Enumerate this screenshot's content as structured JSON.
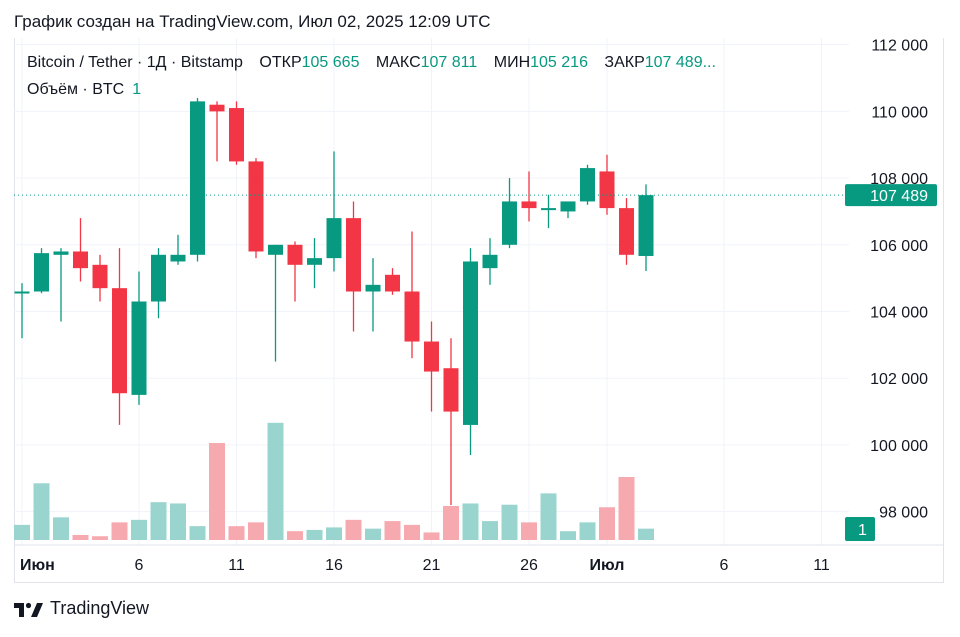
{
  "caption": "График создан на TradingView.com, Июл 02, 2025 12:09 UTC",
  "legend": {
    "symbol": "Bitcoin / Tether · 1Д · Bitstamp",
    "open_label": "ОТКР",
    "open_value": "105 665",
    "high_label": "МАКС",
    "high_value": "107 811",
    "low_label": "МИН",
    "low_value": "105 216",
    "close_label": "ЗАКР",
    "close_value": "107 489...",
    "volume_label": "Объём · BTC",
    "volume_value": "1"
  },
  "footer": {
    "brand": "TradingView"
  },
  "colors": {
    "up": "#089981",
    "down": "#f23645",
    "up_volume": "#99d4ce",
    "down_volume": "#f7a9b0",
    "grid": "#f0f3fa"
  },
  "chart_data": {
    "type": "candlestick",
    "ylim": [
      97000,
      112200
    ],
    "y_ticks": [
      "112 000",
      "110 000",
      "108 000",
      "106 000",
      "104 000",
      "102 000",
      "100 000",
      "98 000"
    ],
    "y_tick_values": [
      112000,
      110000,
      108000,
      106000,
      104000,
      102000,
      100000,
      98000
    ],
    "x_ticks": [
      "Июн",
      "6",
      "11",
      "16",
      "21",
      "26",
      "Июл",
      "6",
      "11"
    ],
    "x_tick_days": [
      0,
      6,
      11,
      16,
      21,
      26,
      30,
      36,
      41
    ],
    "last_price_label": "107 489",
    "last_price": 107489,
    "volume_badge": "1",
    "candles": [
      {
        "day": 0,
        "o": 104550,
        "h": 104850,
        "l": 103200,
        "c": 104600
      },
      {
        "day": 1,
        "o": 104600,
        "h": 105900,
        "l": 104550,
        "c": 105750
      },
      {
        "day": 2,
        "o": 105700,
        "h": 105900,
        "l": 103700,
        "c": 105800
      },
      {
        "day": 3,
        "o": 105800,
        "h": 106800,
        "l": 104900,
        "c": 105300
      },
      {
        "day": 4,
        "o": 105400,
        "h": 105700,
        "l": 104300,
        "c": 104700
      },
      {
        "day": 5,
        "o": 104700,
        "h": 105900,
        "l": 100600,
        "c": 101550
      },
      {
        "day": 6,
        "o": 101500,
        "h": 105200,
        "l": 101200,
        "c": 104300
      },
      {
        "day": 7,
        "o": 104300,
        "h": 105900,
        "l": 103800,
        "c": 105700
      },
      {
        "day": 8,
        "o": 105500,
        "h": 106300,
        "l": 105400,
        "c": 105700
      },
      {
        "day": 9,
        "o": 105700,
        "h": 110400,
        "l": 105500,
        "c": 110300
      },
      {
        "day": 10,
        "o": 110200,
        "h": 110300,
        "l": 108500,
        "c": 110000
      },
      {
        "day": 11,
        "o": 110100,
        "h": 110300,
        "l": 108400,
        "c": 108500
      },
      {
        "day": 12,
        "o": 108500,
        "h": 108600,
        "l": 105600,
        "c": 105800
      },
      {
        "day": 13,
        "o": 105700,
        "h": 106000,
        "l": 102500,
        "c": 106000
      },
      {
        "day": 14,
        "o": 106000,
        "h": 106100,
        "l": 104300,
        "c": 105400
      },
      {
        "day": 15,
        "o": 105400,
        "h": 106200,
        "l": 104700,
        "c": 105600
      },
      {
        "day": 16,
        "o": 105600,
        "h": 108800,
        "l": 105200,
        "c": 106800
      },
      {
        "day": 17,
        "o": 106800,
        "h": 107300,
        "l": 103400,
        "c": 104600
      },
      {
        "day": 18,
        "o": 104600,
        "h": 105600,
        "l": 103400,
        "c": 104800
      },
      {
        "day": 19,
        "o": 105100,
        "h": 105300,
        "l": 104500,
        "c": 104600
      },
      {
        "day": 20,
        "o": 104600,
        "h": 106400,
        "l": 102600,
        "c": 103100
      },
      {
        "day": 21,
        "o": 103100,
        "h": 103700,
        "l": 101000,
        "c": 102200
      },
      {
        "day": 22,
        "o": 102300,
        "h": 103200,
        "l": 98200,
        "c": 101000
      },
      {
        "day": 23,
        "o": 100600,
        "h": 105900,
        "l": 99700,
        "c": 105500
      },
      {
        "day": 24,
        "o": 105300,
        "h": 106200,
        "l": 104800,
        "c": 105700
      },
      {
        "day": 25,
        "o": 106000,
        "h": 108000,
        "l": 105900,
        "c": 107300
      },
      {
        "day": 26,
        "o": 107300,
        "h": 108200,
        "l": 106700,
        "c": 107100
      },
      {
        "day": 27,
        "o": 107100,
        "h": 107500,
        "l": 106500,
        "c": 107100
      },
      {
        "day": 28,
        "o": 107000,
        "h": 107300,
        "l": 106800,
        "c": 107300
      },
      {
        "day": 29,
        "o": 107300,
        "h": 108400,
        "l": 107200,
        "c": 108300
      },
      {
        "day": 30,
        "o": 108200,
        "h": 108700,
        "l": 106900,
        "c": 107100
      },
      {
        "day": 31,
        "o": 107100,
        "h": 107400,
        "l": 105400,
        "c": 105700
      },
      {
        "day": 32,
        "o": 105665,
        "h": 107811,
        "l": 105216,
        "c": 107489
      }
    ],
    "volume_heights": [
      0.12,
      0.45,
      0.18,
      0.04,
      0.03,
      0.14,
      0.16,
      0.3,
      0.29,
      0.11,
      0.77,
      0.11,
      0.14,
      0.93,
      0.07,
      0.08,
      0.1,
      0.16,
      0.09,
      0.15,
      0.12,
      0.06,
      0.27,
      0.29,
      0.15,
      0.28,
      0.14,
      0.37,
      0.07,
      0.14,
      0.26,
      0.5,
      0.09
    ]
  }
}
